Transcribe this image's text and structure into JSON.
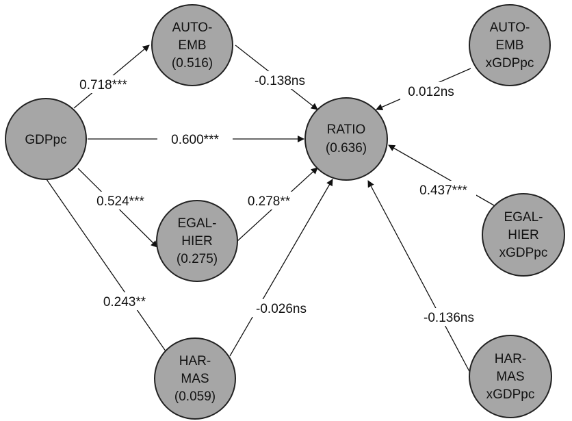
{
  "nodes": {
    "gdppc": {
      "lines": [
        "GDPpc"
      ]
    },
    "auto_emb": {
      "lines": [
        "AUTO-",
        "EMB",
        "(0.516)"
      ]
    },
    "egal_hier": {
      "lines": [
        "EGAL-",
        "HIER",
        "(0.275)"
      ]
    },
    "har_mas": {
      "lines": [
        "HAR-",
        "MAS",
        "(0.059)"
      ]
    },
    "ratio": {
      "lines": [
        "RATIO",
        "(0.636)"
      ]
    },
    "auto_emb_x": {
      "lines": [
        "AUTO-",
        "EMB",
        "xGDPpc"
      ]
    },
    "egal_hier_x": {
      "lines": [
        "EGAL-",
        "HIER",
        "xGDPpc"
      ]
    },
    "har_mas_x": {
      "lines": [
        "HAR-",
        "MAS",
        "xGDPpc"
      ]
    }
  },
  "edges": {
    "gdppc_auto": "0.718***",
    "gdppc_ratio": "0.600***",
    "gdppc_egal": "0.524***",
    "gdppc_har": "0.243**",
    "auto_ratio": "-0.138ns",
    "egal_ratio": "0.278**",
    "har_ratio": "-0.026ns",
    "autox_ratio": "0.012ns",
    "egalx_ratio": "0.437***",
    "harx_ratio": "-0.136ns"
  },
  "colors": {
    "node_fill": "#a6a6a6",
    "node_stroke": "#222222",
    "line": "#111111"
  }
}
